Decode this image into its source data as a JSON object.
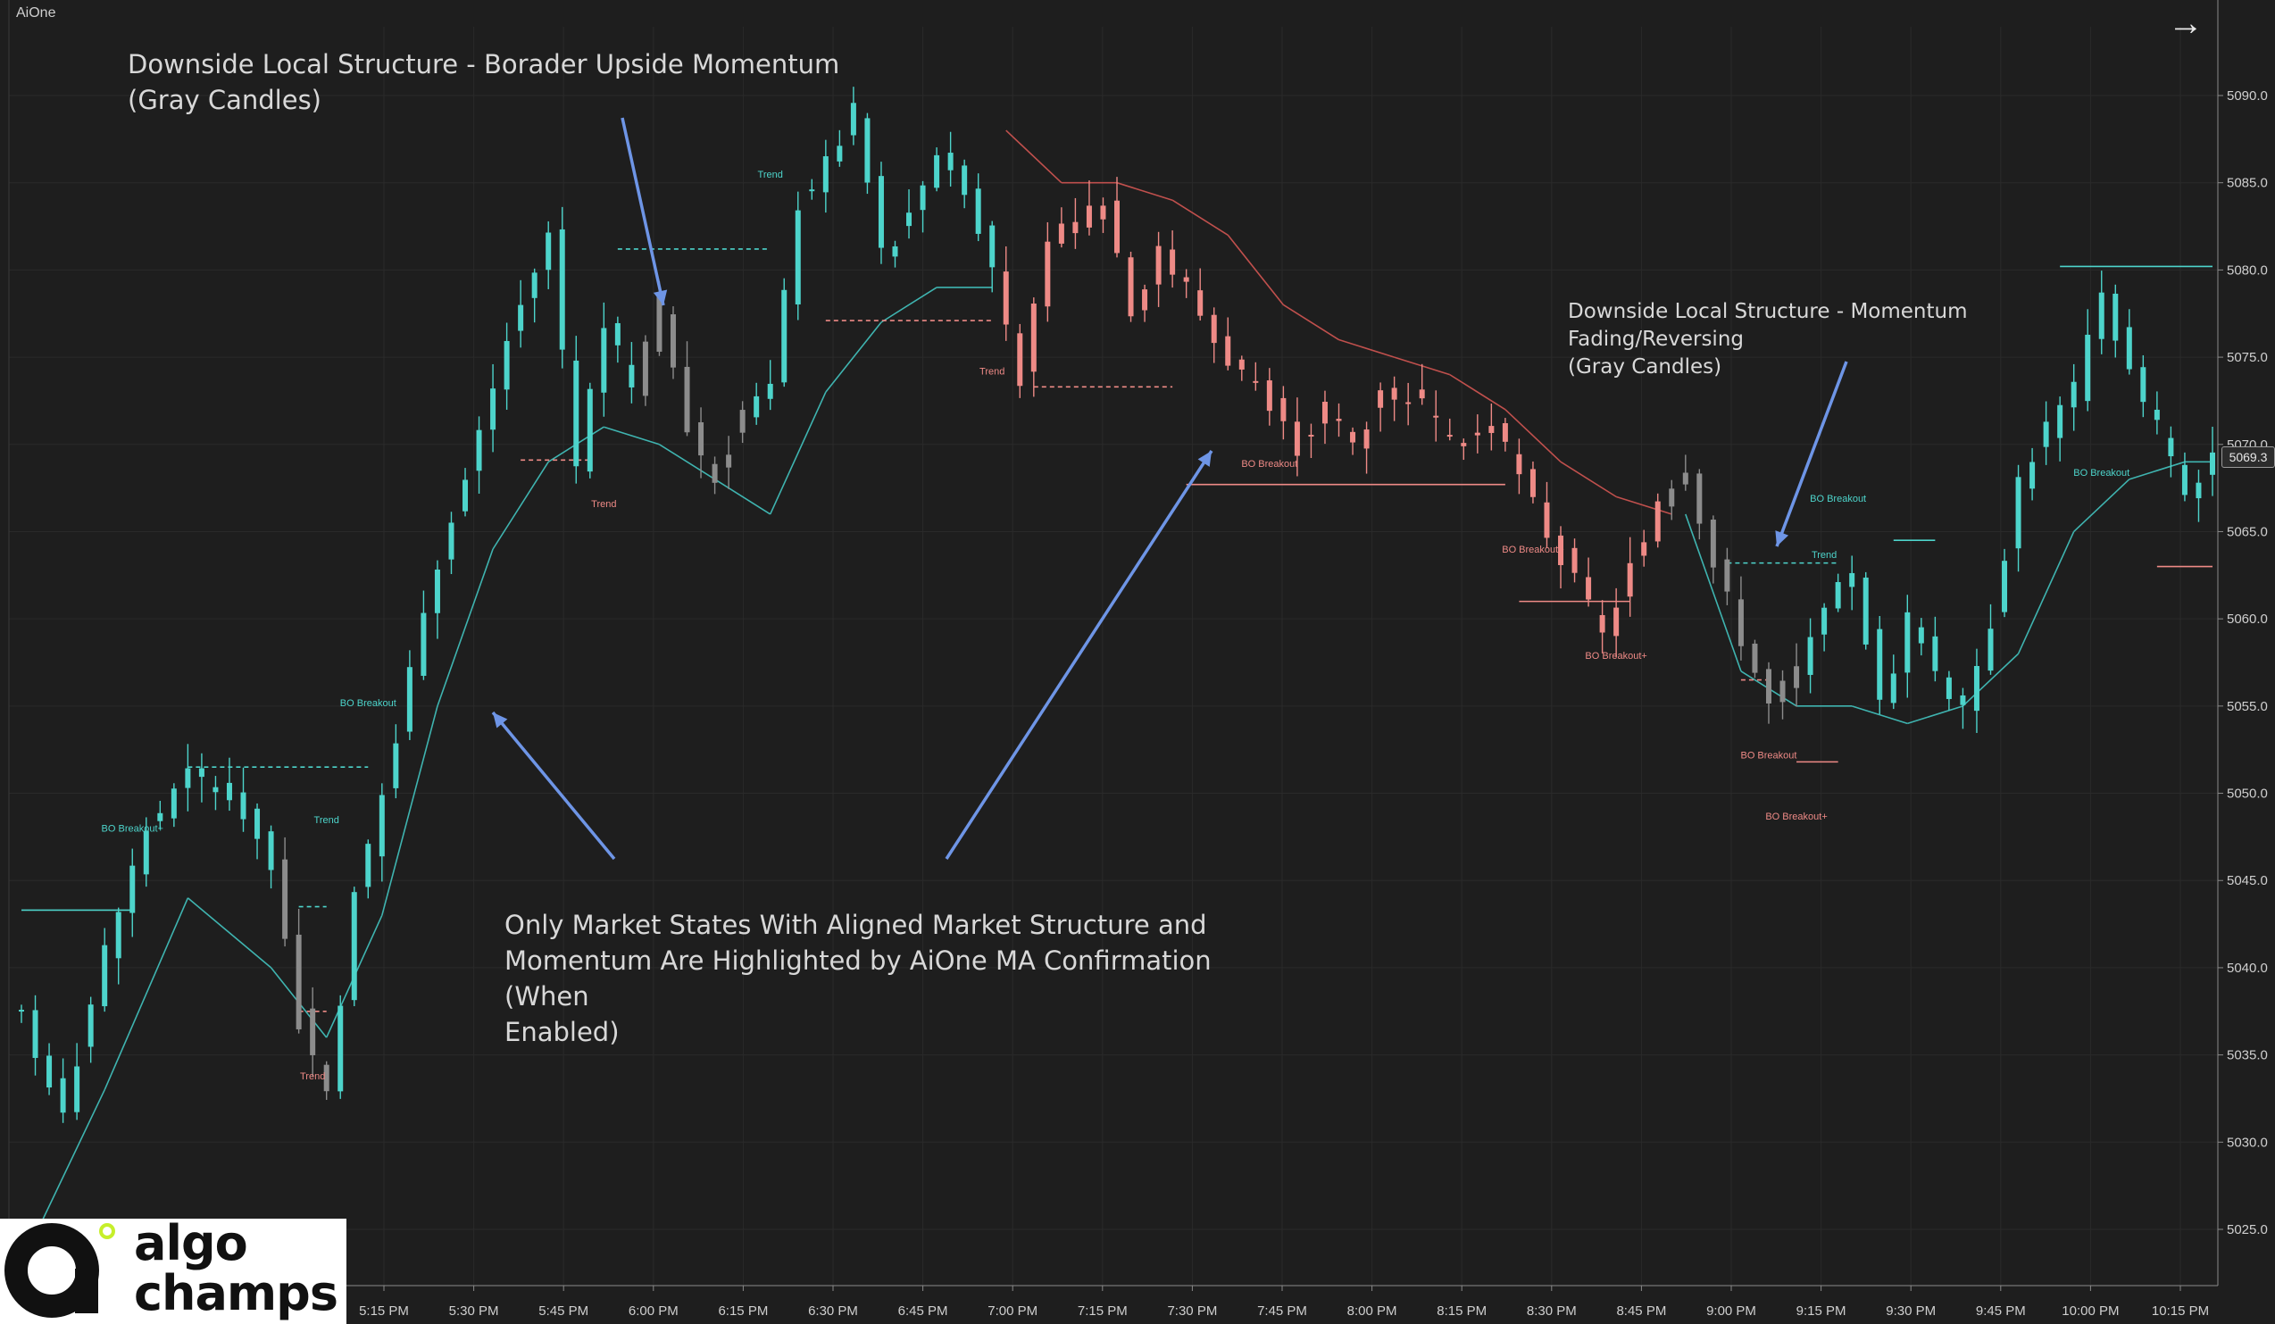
{
  "app": {
    "name": "AiOne"
  },
  "colors": {
    "background": "#1e1e1e",
    "bull": "#4dd4cb",
    "bear": "#ee8a86",
    "neutral": "#8c8c8c",
    "ma_bull": "#3fb4b0",
    "ma_bear": "#c0504d",
    "annotation_arrow": "#6e95e6",
    "axis_text": "#cfcfcf",
    "grid": "#2a2a2a"
  },
  "annotations": {
    "note1_line1": "Downside Local Structure - Borader Upside Momentum",
    "note1_line2": "(Gray Candles)",
    "note2_line1": "Downside Local Structure - Momentum Fading/Reversing",
    "note2_line2": "(Gray Candles)",
    "note3_line1": "Only Market States With Aligned Market Structure and",
    "note3_line2": "Momentum Are Highlighted by AiOne MA Confirmation (When",
    "note3_line3": "Enabled)"
  },
  "logo": {
    "line1": "algo",
    "line2": "champs"
  },
  "price_badge": "5069.3",
  "chart_data": {
    "type": "candlestick",
    "symbol_label": "AiOne",
    "x_ticks": [
      "5:15 PM",
      "5:30 PM",
      "5:45 PM",
      "6:00 PM",
      "6:15 PM",
      "6:30 PM",
      "6:45 PM",
      "7:00 PM",
      "7:15 PM",
      "7:30 PM",
      "7:45 PM",
      "8:00 PM",
      "8:15 PM",
      "8:30 PM",
      "8:45 PM",
      "9:00 PM",
      "9:15 PM",
      "9:30 PM",
      "9:45 PM",
      "10:00 PM",
      "10:15 PM"
    ],
    "y_ticks": [
      "5025.0",
      "5030.0",
      "5035.0",
      "5040.0",
      "5045.0",
      "5050.0",
      "5055.0",
      "5060.0",
      "5065.0",
      "5070.0",
      "5075.0",
      "5080.0",
      "5085.0",
      "5090.0"
    ],
    "ylim": [
      5022,
      5094
    ],
    "last_price": 5069.3,
    "price_path": [
      [
        0,
        5037,
        "bull"
      ],
      [
        3,
        5032,
        "bull"
      ],
      [
        6,
        5041,
        "bull"
      ],
      [
        9,
        5048,
        "bull"
      ],
      [
        12,
        5051,
        "bull"
      ],
      [
        15,
        5050,
        "bull"
      ],
      [
        18,
        5046,
        "bull"
      ],
      [
        20,
        5037,
        "neutral"
      ],
      [
        22,
        5033,
        "neutral"
      ],
      [
        24,
        5044,
        "bull"
      ],
      [
        27,
        5053,
        "bull"
      ],
      [
        29,
        5061,
        "bull"
      ],
      [
        32,
        5068,
        "bull"
      ],
      [
        35,
        5076,
        "bull"
      ],
      [
        38,
        5082,
        "bull"
      ],
      [
        40,
        5069,
        "bull"
      ],
      [
        42,
        5077,
        "bull"
      ],
      [
        44,
        5073,
        "bull"
      ],
      [
        46,
        5078,
        "neutral"
      ],
      [
        48,
        5071,
        "neutral"
      ],
      [
        50,
        5068,
        "neutral"
      ],
      [
        52,
        5072,
        "neutral"
      ],
      [
        54,
        5073,
        "bull"
      ],
      [
        56,
        5084,
        "bull"
      ],
      [
        58,
        5086,
        "bull"
      ],
      [
        60,
        5089,
        "bull"
      ],
      [
        62,
        5081,
        "bull"
      ],
      [
        64,
        5083,
        "bull"
      ],
      [
        66,
        5087,
        "bull"
      ],
      [
        68,
        5085,
        "bull"
      ],
      [
        70,
        5080,
        "bull"
      ],
      [
        72,
        5074,
        "bear"
      ],
      [
        74,
        5081,
        "bear"
      ],
      [
        76,
        5083,
        "bear"
      ],
      [
        78,
        5084,
        "bear"
      ],
      [
        80,
        5078,
        "bear"
      ],
      [
        82,
        5081,
        "bear"
      ],
      [
        84,
        5079,
        "bear"
      ],
      [
        86,
        5076,
        "bear"
      ],
      [
        88,
        5074,
        "bear"
      ],
      [
        90,
        5072,
        "bear"
      ],
      [
        92,
        5070,
        "bear"
      ],
      [
        94,
        5072,
        "bear"
      ],
      [
        96,
        5070,
        "bear"
      ],
      [
        98,
        5073,
        "bear"
      ],
      [
        100,
        5073,
        "bear"
      ],
      [
        102,
        5071,
        "bear"
      ],
      [
        104,
        5070,
        "bear"
      ],
      [
        106,
        5071,
        "bear"
      ],
      [
        108,
        5068,
        "bear"
      ],
      [
        110,
        5065,
        "bear"
      ],
      [
        112,
        5062,
        "bear"
      ],
      [
        114,
        5059,
        "bear"
      ],
      [
        116,
        5063,
        "bear"
      ],
      [
        118,
        5067,
        "bear"
      ],
      [
        120,
        5069,
        "neutral"
      ],
      [
        122,
        5063,
        "neutral"
      ],
      [
        124,
        5059,
        "neutral"
      ],
      [
        126,
        5055,
        "neutral"
      ],
      [
        128,
        5057,
        "neutral"
      ],
      [
        130,
        5060,
        "bull"
      ],
      [
        132,
        5063,
        "bull"
      ],
      [
        134,
        5055,
        "bull"
      ],
      [
        136,
        5060,
        "bull"
      ],
      [
        138,
        5057,
        "bull"
      ],
      [
        140,
        5055,
        "bull"
      ],
      [
        142,
        5060,
        "bull"
      ],
      [
        144,
        5068,
        "bull"
      ],
      [
        146,
        5071,
        "bull"
      ],
      [
        148,
        5073,
        "bull"
      ],
      [
        150,
        5079,
        "bull"
      ],
      [
        152,
        5074,
        "bull"
      ],
      [
        154,
        5071,
        "bull"
      ],
      [
        156,
        5067,
        "bull"
      ],
      [
        158,
        5069,
        "bull"
      ]
    ],
    "ma_path": [
      [
        0,
        5023,
        "bull"
      ],
      [
        6,
        5033,
        "bull"
      ],
      [
        12,
        5044,
        "bull"
      ],
      [
        18,
        5040,
        "bull"
      ],
      [
        22,
        5036,
        "bull"
      ],
      [
        26,
        5043,
        "bull"
      ],
      [
        30,
        5055,
        "bull"
      ],
      [
        34,
        5064,
        "bull"
      ],
      [
        38,
        5069,
        "bull"
      ],
      [
        42,
        5071,
        "bull"
      ],
      [
        46,
        5070,
        "bull"
      ],
      [
        50,
        5068,
        "bull"
      ],
      [
        54,
        5066,
        "bull"
      ],
      [
        58,
        5073,
        "bull"
      ],
      [
        62,
        5077,
        "bull"
      ],
      [
        66,
        5079,
        "bull"
      ],
      [
        70,
        5079,
        "bull"
      ],
      [
        71,
        5088,
        "bear"
      ],
      [
        75,
        5085,
        "bear"
      ],
      [
        79,
        5085,
        "bear"
      ],
      [
        83,
        5084,
        "bear"
      ],
      [
        87,
        5082,
        "bear"
      ],
      [
        91,
        5078,
        "bear"
      ],
      [
        95,
        5076,
        "bear"
      ],
      [
        99,
        5075,
        "bear"
      ],
      [
        103,
        5074,
        "bear"
      ],
      [
        107,
        5072,
        "bear"
      ],
      [
        111,
        5069,
        "bear"
      ],
      [
        115,
        5067,
        "bear"
      ],
      [
        119,
        5066,
        "bear"
      ],
      [
        120,
        5066,
        "bull"
      ],
      [
        124,
        5057,
        "bull"
      ],
      [
        128,
        5055,
        "bull"
      ],
      [
        132,
        5055,
        "bull"
      ],
      [
        136,
        5054,
        "bull"
      ],
      [
        140,
        5055,
        "bull"
      ],
      [
        144,
        5058,
        "bull"
      ],
      [
        148,
        5065,
        "bull"
      ],
      [
        152,
        5068,
        "bull"
      ],
      [
        156,
        5069,
        "bull"
      ],
      [
        158,
        5069,
        "bull"
      ]
    ],
    "levels": [
      {
        "x0": 0,
        "x1": 8,
        "y": 5043.3,
        "color": "bull",
        "dashed": false
      },
      {
        "x0": 12,
        "x1": 25,
        "y": 5051.5,
        "color": "bull",
        "dashed": true
      },
      {
        "x0": 20,
        "x1": 22,
        "y": 5043.5,
        "color": "bull",
        "dashed": true
      },
      {
        "x0": 20,
        "x1": 22,
        "y": 5037.5,
        "color": "bear",
        "dashed": true
      },
      {
        "x0": 36,
        "x1": 41,
        "y": 5069.1,
        "color": "bear",
        "dashed": true
      },
      {
        "x0": 43,
        "x1": 54,
        "y": 5081.2,
        "color": "bull",
        "dashed": true
      },
      {
        "x0": 58,
        "x1": 70,
        "y": 5077.1,
        "color": "bear",
        "dashed": true
      },
      {
        "x0": 73,
        "x1": 83,
        "y": 5073.3,
        "color": "bear",
        "dashed": true
      },
      {
        "x0": 84,
        "x1": 107,
        "y": 5067.7,
        "color": "bear",
        "dashed": false
      },
      {
        "x0": 108,
        "x1": 116,
        "y": 5061.0,
        "color": "bear",
        "dashed": false
      },
      {
        "x0": 123,
        "x1": 131,
        "y": 5063.2,
        "color": "bull",
        "dashed": true
      },
      {
        "x0": 124,
        "x1": 126,
        "y": 5056.5,
        "color": "bear",
        "dashed": true
      },
      {
        "x0": 128,
        "x1": 131,
        "y": 5051.8,
        "color": "bear",
        "dashed": false
      },
      {
        "x0": 135,
        "x1": 138,
        "y": 5064.5,
        "color": "bull",
        "dashed": false
      },
      {
        "x0": 147,
        "x1": 158,
        "y": 5080.2,
        "color": "bull",
        "dashed": false
      },
      {
        "x0": 154,
        "x1": 158,
        "y": 5063.0,
        "color": "bear",
        "dashed": false
      }
    ],
    "labels": [
      {
        "text": "BO Breakout+",
        "t": 8,
        "y": 5047.8,
        "color": "bull"
      },
      {
        "text": "Trend",
        "t": 22,
        "y": 5048.3,
        "color": "bull"
      },
      {
        "text": "Trend",
        "t": 21,
        "y": 5033.6,
        "color": "bear"
      },
      {
        "text": "BO Breakout",
        "t": 25,
        "y": 5055.0,
        "color": "bull"
      },
      {
        "text": "Trend",
        "t": 42,
        "y": 5066.4,
        "color": "bear"
      },
      {
        "text": "Trend",
        "t": 54,
        "y": 5085.3,
        "color": "bull"
      },
      {
        "text": "Trend",
        "t": 70,
        "y": 5074.0,
        "color": "bear"
      },
      {
        "text": "BO Breakout",
        "t": 90,
        "y": 5068.7,
        "color": "bear"
      },
      {
        "text": "BO Breakout+",
        "t": 109,
        "y": 5063.8,
        "color": "bear"
      },
      {
        "text": "BO Breakout+",
        "t": 115,
        "y": 5057.7,
        "color": "bear"
      },
      {
        "text": "BO Breakout",
        "t": 131,
        "y": 5066.7,
        "color": "bull"
      },
      {
        "text": "Trend",
        "t": 130,
        "y": 5063.5,
        "color": "bull"
      },
      {
        "text": "BO Breakout",
        "t": 150,
        "y": 5068.2,
        "color": "bull"
      },
      {
        "text": "BO Breakout",
        "t": 126,
        "y": 5052.0,
        "color": "bear"
      },
      {
        "text": "BO Breakout+",
        "t": 128,
        "y": 5048.5,
        "color": "bear"
      }
    ]
  }
}
